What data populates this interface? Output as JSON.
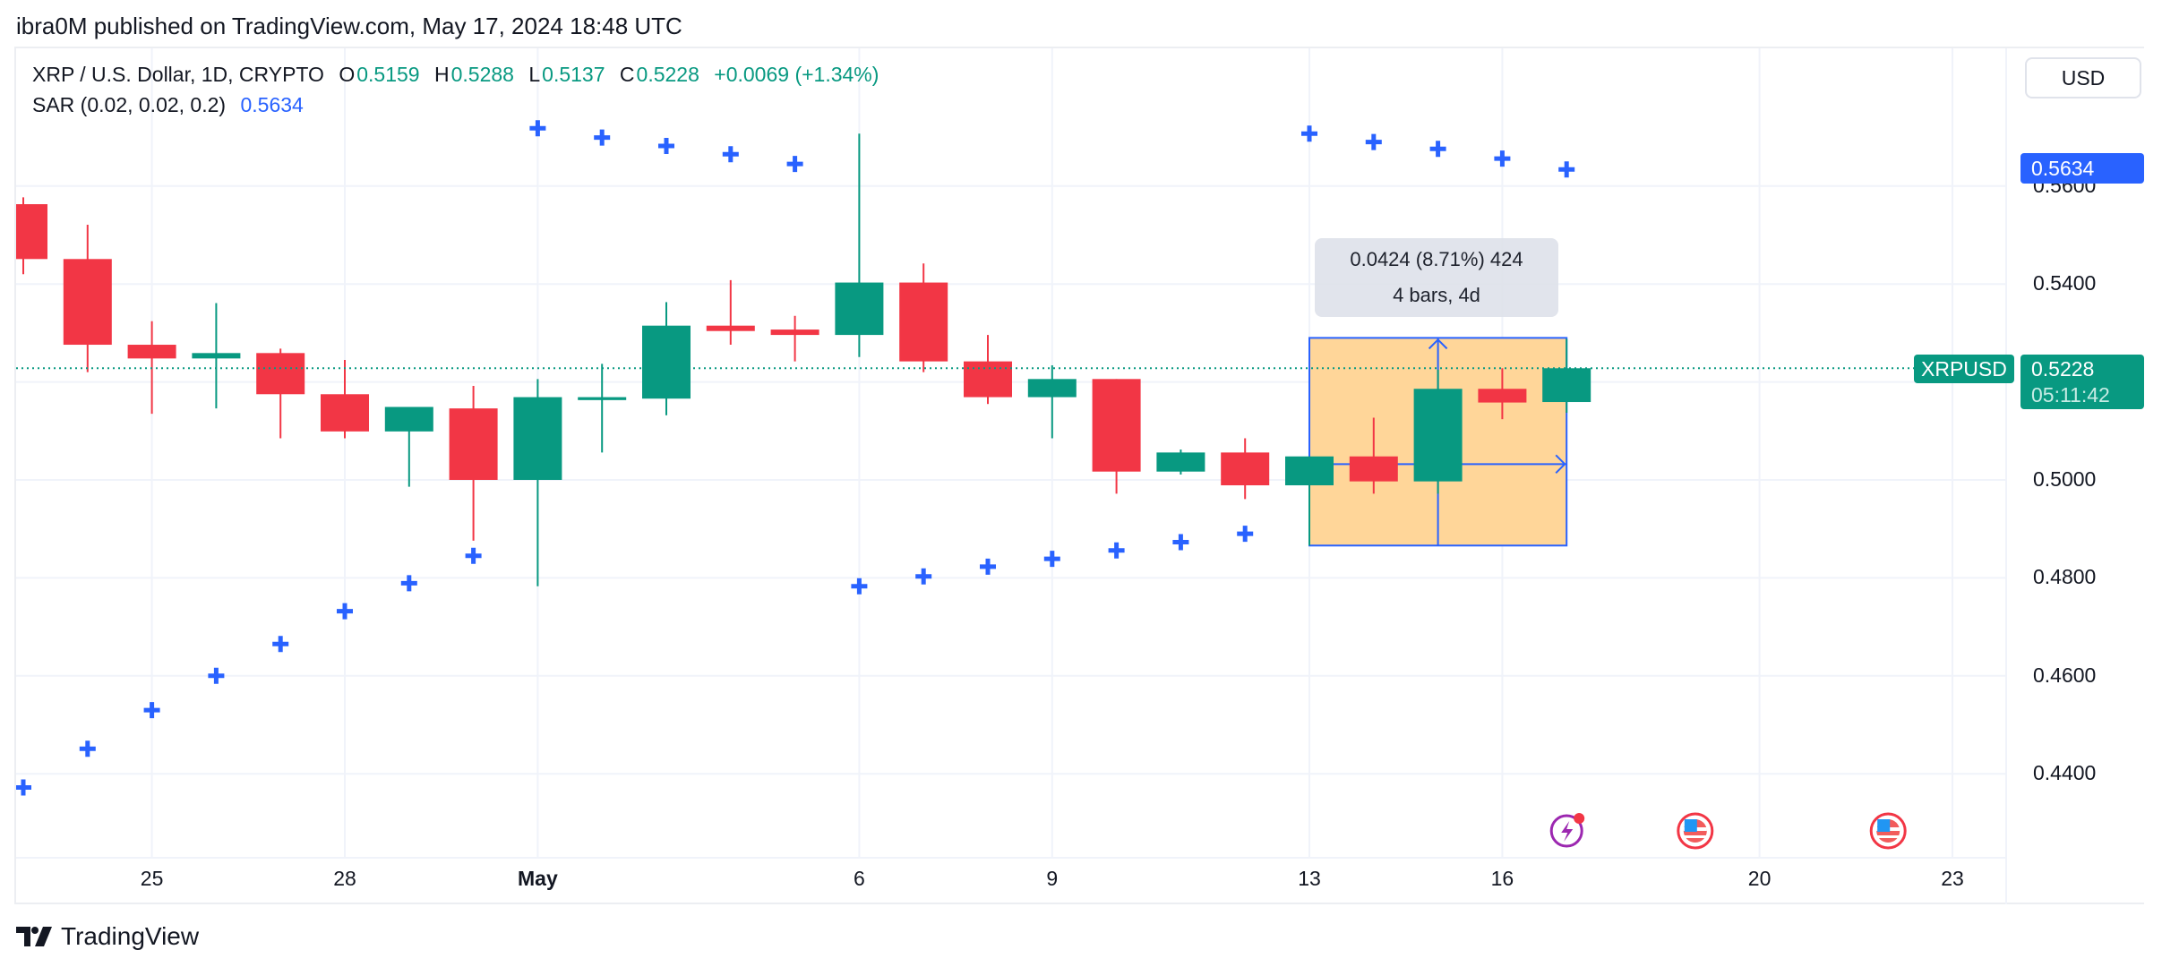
{
  "header": {
    "publisher": "ibra0M published on TradingView.com, May 17, 2024 18:48 UTC"
  },
  "legend": {
    "symbol": "XRP / U.S. Dollar, 1D, CRYPTO",
    "o_label": "O",
    "o": "0.5159",
    "h_label": "H",
    "h": "0.5288",
    "l_label": "L",
    "l": "0.5137",
    "c_label": "C",
    "c": "0.5228",
    "change": "+0.0069 (+1.34%)",
    "indicator": "SAR (0.02, 0.02, 0.2)",
    "indicator_value": "0.5634"
  },
  "currency_button": "USD",
  "price_axis": {
    "ticks": [
      "0.5600",
      "0.5400",
      "0.5000",
      "0.4800",
      "0.4600",
      "0.4400"
    ]
  },
  "tags": {
    "sar_value": "0.5634",
    "symbol": "XRPUSD",
    "last_price": "0.5228",
    "countdown": "05:11:42"
  },
  "time_axis": {
    "ticks": [
      "25",
      "28",
      "May",
      "6",
      "9",
      "13",
      "16",
      "20",
      "23"
    ]
  },
  "measure_tooltip": {
    "line1": "0.0424 (8.71%) 424",
    "line2": "4 bars, 4d"
  },
  "branding": {
    "logo_text": "TradingView"
  },
  "colors": {
    "up": "#089981",
    "down": "#f23645",
    "sar": "#2962ff",
    "measure_fill": "#ffd699",
    "measure_border": "#2962ff"
  },
  "chart_data": {
    "type": "candlestick",
    "ylim": [
      0.43,
      0.575
    ],
    "price_ticks": [
      0.44,
      0.46,
      0.48,
      0.5,
      0.52,
      0.54,
      0.56
    ],
    "time_ticks": [
      {
        "label": "25",
        "date": "2024-04-25"
      },
      {
        "label": "28",
        "date": "2024-04-28"
      },
      {
        "label": "May",
        "date": "2024-05-01"
      },
      {
        "label": "6",
        "date": "2024-05-06"
      },
      {
        "label": "9",
        "date": "2024-05-09"
      },
      {
        "label": "13",
        "date": "2024-05-13"
      },
      {
        "label": "16",
        "date": "2024-05-16"
      },
      {
        "label": "20",
        "date": "2024-05-20"
      },
      {
        "label": "23",
        "date": "2024-05-23"
      }
    ],
    "first_date": "2024-04-23",
    "candles": [
      {
        "date": "2024-04-23",
        "o": 0.5563,
        "h": 0.5577,
        "l": 0.542,
        "c": 0.5451
      },
      {
        "date": "2024-04-24",
        "o": 0.5451,
        "h": 0.5521,
        "l": 0.522,
        "c": 0.5276
      },
      {
        "date": "2024-04-25",
        "o": 0.5276,
        "h": 0.5324,
        "l": 0.5135,
        "c": 0.5248
      },
      {
        "date": "2024-04-26",
        "o": 0.5248,
        "h": 0.5361,
        "l": 0.5146,
        "c": 0.5259
      },
      {
        "date": "2024-04-27",
        "o": 0.5259,
        "h": 0.5268,
        "l": 0.5085,
        "c": 0.5175
      },
      {
        "date": "2024-04-28",
        "o": 0.5175,
        "h": 0.5245,
        "l": 0.5085,
        "c": 0.5099
      },
      {
        "date": "2024-04-29",
        "o": 0.5099,
        "h": 0.5149,
        "l": 0.4986,
        "c": 0.5149
      },
      {
        "date": "2024-04-30",
        "o": 0.5146,
        "h": 0.5192,
        "l": 0.4876,
        "c": 0.5
      },
      {
        "date": "2024-05-01",
        "o": 0.5,
        "h": 0.5206,
        "l": 0.4783,
        "c": 0.5169
      },
      {
        "date": "2024-05-02",
        "o": 0.5163,
        "h": 0.5237,
        "l": 0.5056,
        "c": 0.5169
      },
      {
        "date": "2024-05-03",
        "o": 0.5166,
        "h": 0.5363,
        "l": 0.5132,
        "c": 0.5315
      },
      {
        "date": "2024-05-04",
        "o": 0.5315,
        "h": 0.5408,
        "l": 0.5276,
        "c": 0.5304
      },
      {
        "date": "2024-05-05",
        "o": 0.5307,
        "h": 0.5335,
        "l": 0.5242,
        "c": 0.5296
      },
      {
        "date": "2024-05-06",
        "o": 0.5296,
        "h": 0.5707,
        "l": 0.5251,
        "c": 0.5403
      },
      {
        "date": "2024-05-07",
        "o": 0.5403,
        "h": 0.5442,
        "l": 0.522,
        "c": 0.5242
      },
      {
        "date": "2024-05-08",
        "o": 0.5242,
        "h": 0.5296,
        "l": 0.5155,
        "c": 0.5169
      },
      {
        "date": "2024-05-09",
        "o": 0.5169,
        "h": 0.5234,
        "l": 0.5085,
        "c": 0.5206
      },
      {
        "date": "2024-05-10",
        "o": 0.5206,
        "h": 0.5206,
        "l": 0.4972,
        "c": 0.5017
      },
      {
        "date": "2024-05-11",
        "o": 0.5017,
        "h": 0.5062,
        "l": 0.5011,
        "c": 0.5056
      },
      {
        "date": "2024-05-12",
        "o": 0.5056,
        "h": 0.5085,
        "l": 0.4961,
        "c": 0.4989
      },
      {
        "date": "2024-05-13",
        "o": 0.4989,
        "h": 0.5048,
        "l": 0.4866,
        "c": 0.5048
      },
      {
        "date": "2024-05-14",
        "o": 0.5048,
        "h": 0.5127,
        "l": 0.4972,
        "c": 0.4997
      },
      {
        "date": "2024-05-15",
        "o": 0.4997,
        "h": 0.5225,
        "l": 0.4972,
        "c": 0.5186
      },
      {
        "date": "2024-05-16",
        "o": 0.5186,
        "h": 0.5228,
        "l": 0.5124,
        "c": 0.5158
      },
      {
        "date": "2024-05-17",
        "o": 0.5159,
        "h": 0.5288,
        "l": 0.5137,
        "c": 0.5228
      }
    ],
    "sar": [
      0.4372,
      0.4451,
      0.453,
      0.46,
      0.4665,
      0.4732,
      0.4789,
      0.4845,
      0.5718,
      0.5699,
      0.5682,
      0.5665,
      0.5645,
      0.4783,
      0.4803,
      0.4823,
      0.4839,
      0.4856,
      0.4873,
      0.489,
      0.5707,
      0.569,
      0.5676,
      0.5656,
      0.5634
    ],
    "last_price": 0.5228,
    "measure": {
      "from_date": "2024-05-13",
      "to_date": "2024-05-17",
      "from_price": 0.4866,
      "to_price": 0.529
    },
    "events": [
      {
        "date": "2024-05-17",
        "type": "lightning-event"
      },
      {
        "date": "2024-05-19",
        "type": "us-economic-event"
      },
      {
        "date": "2024-05-22",
        "type": "us-economic-event"
      }
    ]
  }
}
